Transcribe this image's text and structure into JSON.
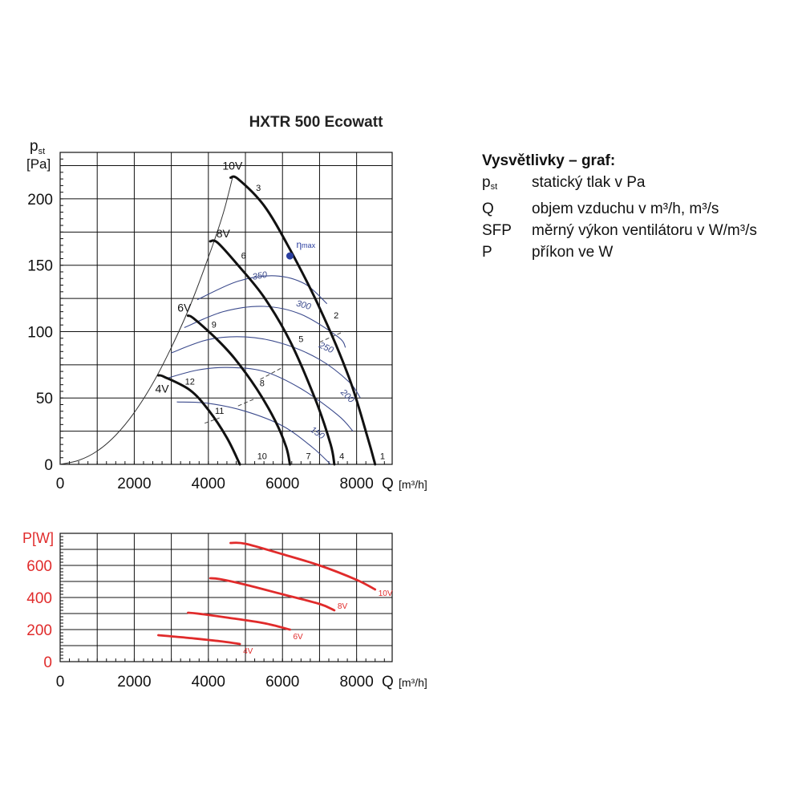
{
  "chart_data": [
    {
      "type": "line",
      "title": "HXTR 500 Ecowatt",
      "y_label_main": "p",
      "y_label_sub": "st",
      "y_label_unit": "[Pa]",
      "x_label": "Q",
      "x_label_unit": "[m³/h]",
      "xlim": [
        0,
        8960
      ],
      "ylim": [
        0,
        235
      ],
      "x_ticks": [
        0,
        2000,
        4000,
        6000,
        8000
      ],
      "y_ticks": [
        0,
        50,
        100,
        150,
        200
      ],
      "grid": true,
      "fan_curves": [
        {
          "name": "10V",
          "points": [
            [
              4600,
              216
            ],
            [
              4800,
              215
            ],
            [
              5500,
              195
            ],
            [
              6200,
              162
            ],
            [
              7000,
              118
            ],
            [
              7800,
              65
            ],
            [
              8300,
              20
            ],
            [
              8500,
              0
            ]
          ]
        },
        {
          "name": "8V",
          "points": [
            [
              4050,
              168
            ],
            [
              4250,
              167
            ],
            [
              4800,
              150
            ],
            [
              5500,
              126
            ],
            [
              6200,
              93
            ],
            [
              6900,
              48
            ],
            [
              7300,
              15
            ],
            [
              7400,
              0
            ]
          ]
        },
        {
          "name": "6V",
          "points": [
            [
              3450,
              112
            ],
            [
              3600,
              110
            ],
            [
              4200,
              95
            ],
            [
              4700,
              80
            ],
            [
              5300,
              57
            ],
            [
              5800,
              33
            ],
            [
              6100,
              13
            ],
            [
              6200,
              0
            ]
          ]
        },
        {
          "name": "4V",
          "points": [
            [
              2650,
              67
            ],
            [
              2800,
              66
            ],
            [
              3500,
              56
            ],
            [
              4000,
              41
            ],
            [
              4500,
              20
            ],
            [
              4850,
              0
            ]
          ]
        }
      ],
      "system_curve": [
        [
          0,
          0
        ],
        [
          500,
          3
        ],
        [
          1000,
          10
        ],
        [
          1500,
          22
        ],
        [
          2000,
          39
        ],
        [
          2500,
          61
        ],
        [
          3000,
          88
        ],
        [
          3500,
          119
        ],
        [
          4000,
          156
        ],
        [
          4400,
          189
        ],
        [
          4650,
          216
        ]
      ],
      "sfp_curves": [
        {
          "label": "350",
          "points": [
            [
              3700,
              124
            ],
            [
              4800,
              138
            ],
            [
              5800,
              142
            ],
            [
              6600,
              136
            ],
            [
              7200,
              121
            ]
          ]
        },
        {
          "label": "300",
          "points": [
            [
              3350,
              103
            ],
            [
              4400,
              115
            ],
            [
              5500,
              119
            ],
            [
              6500,
              113
            ],
            [
              7500,
              96
            ],
            [
              7700,
              88
            ]
          ]
        },
        {
          "label": "250",
          "points": [
            [
              3000,
              84
            ],
            [
              4000,
              94
            ],
            [
              5000,
              96
            ],
            [
              6000,
              91
            ],
            [
              7000,
              79
            ],
            [
              7800,
              62
            ],
            [
              8100,
              50
            ]
          ]
        },
        {
          "label": "200",
          "points": [
            [
              2900,
              65
            ],
            [
              3700,
              71
            ],
            [
              4500,
              73
            ],
            [
              5500,
              70
            ],
            [
              6500,
              57
            ],
            [
              7500,
              37
            ],
            [
              7900,
              25
            ]
          ]
        },
        {
          "label": "150",
          "points": [
            [
              3150,
              47
            ],
            [
              4000,
              46
            ],
            [
              5000,
              40
            ],
            [
              6000,
              29
            ],
            [
              6800,
              13
            ],
            [
              7300,
              0
            ]
          ]
        }
      ],
      "eta_max": {
        "label_main": "η",
        "label_sub": "max",
        "point": [
          6200,
          157
        ]
      },
      "point_labels": [
        {
          "text": "1",
          "x": 8700,
          "y": 4
        },
        {
          "text": "2",
          "x": 7450,
          "y": 110
        },
        {
          "text": "3",
          "x": 5350,
          "y": 206
        },
        {
          "text": "4",
          "x": 7600,
          "y": 4
        },
        {
          "text": "5",
          "x": 6500,
          "y": 92
        },
        {
          "text": "6",
          "x": 4950,
          "y": 155
        },
        {
          "text": "7",
          "x": 6700,
          "y": 4
        },
        {
          "text": "8",
          "x": 5450,
          "y": 59
        },
        {
          "text": "9",
          "x": 4150,
          "y": 103
        },
        {
          "text": "10",
          "x": 5450,
          "y": 4
        },
        {
          "text": "11",
          "x": 4300,
          "y": 38
        },
        {
          "text": "12",
          "x": 3500,
          "y": 60
        }
      ],
      "dashed_markers": [
        {
          "points": [
            [
              7000,
              92
            ],
            [
              7650,
              100
            ]
          ]
        },
        {
          "points": [
            [
              5400,
              64
            ],
            [
              6000,
              73
            ]
          ]
        },
        {
          "points": [
            [
              4800,
              44
            ],
            [
              5300,
              50
            ]
          ]
        },
        {
          "points": [
            [
              3900,
              31
            ],
            [
              4300,
              35
            ]
          ]
        }
      ]
    },
    {
      "type": "line",
      "y_label": "P[W]",
      "x_label": "Q",
      "x_label_unit": "[m³/h]",
      "xlim": [
        0,
        8960
      ],
      "ylim": [
        0,
        800
      ],
      "x_ticks": [
        0,
        2000,
        4000,
        6000,
        8000
      ],
      "y_ticks": [
        0,
        200,
        400,
        600
      ],
      "grid": true,
      "series": [
        {
          "name": "10V",
          "points": [
            [
              4600,
              740
            ],
            [
              5000,
              735
            ],
            [
              6000,
              670
            ],
            [
              7000,
              600
            ],
            [
              8000,
              510
            ],
            [
              8500,
              450
            ]
          ]
        },
        {
          "name": "8V",
          "points": [
            [
              4050,
              520
            ],
            [
              4300,
              515
            ],
            [
              5000,
              480
            ],
            [
              6000,
              420
            ],
            [
              7000,
              360
            ],
            [
              7400,
              320
            ]
          ]
        },
        {
          "name": "6V",
          "points": [
            [
              3450,
              305
            ],
            [
              3700,
              300
            ],
            [
              4500,
              275
            ],
            [
              5500,
              240
            ],
            [
              6200,
              200
            ]
          ]
        },
        {
          "name": "4V",
          "points": [
            [
              2650,
              165
            ],
            [
              2900,
              160
            ],
            [
              3600,
              145
            ],
            [
              4400,
              125
            ],
            [
              4850,
              110
            ]
          ]
        }
      ]
    }
  ],
  "legend": {
    "title": "Vysvětlivky – graf:",
    "rows": [
      {
        "symbol": "p",
        "symbol_sub": "st",
        "text": "statický tlak v Pa"
      },
      {
        "symbol": "Q",
        "symbol_sub": "",
        "text": "objem vzduchu v m³/h, m³/s"
      },
      {
        "symbol": "SFP",
        "symbol_sub": "",
        "text": "měrný výkon ventilátoru v W/m³/s"
      },
      {
        "symbol": "P",
        "symbol_sub": "",
        "text": "příkon ve W"
      }
    ]
  },
  "colors": {
    "axis": "#111111",
    "grid": "#111111",
    "fan_curve": "#111111",
    "system_curve": "#333333",
    "sfp_curve": "#3b4a8c",
    "eta_marker": "#2b3fa0",
    "power_curve": "#e02b2b",
    "power_axis_text": "#e02b2b"
  }
}
